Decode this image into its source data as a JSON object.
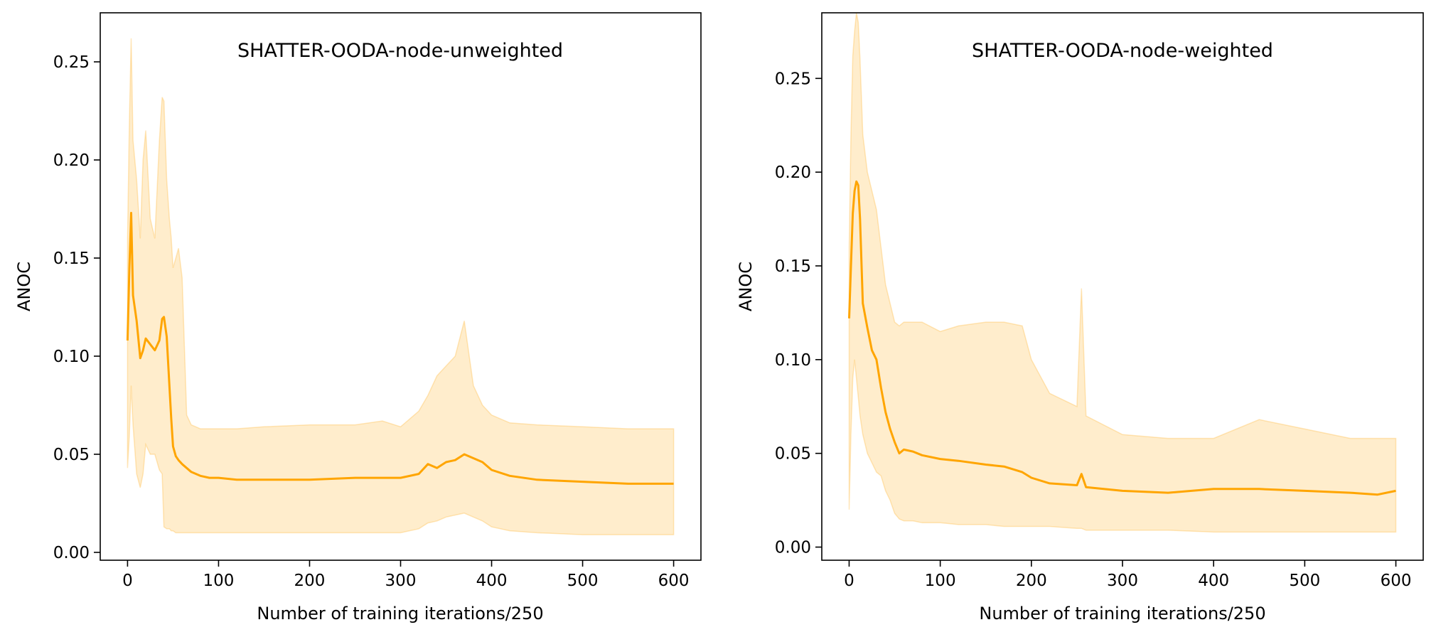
{
  "colors": {
    "line": "#ffa500",
    "band": "#ffa500",
    "axes": "#000000",
    "background": "#ffffff"
  },
  "chart_data": [
    {
      "type": "line",
      "title": "SHATTER-OODA-node-unweighted",
      "xlabel": "Number of training iterations/250",
      "ylabel": "ANOC",
      "xlim": [
        -30,
        630
      ],
      "ylim": [
        -0.004,
        0.275
      ],
      "xticks": [
        0,
        100,
        200,
        300,
        400,
        500,
        600
      ],
      "xtick_labels": [
        "0",
        "100",
        "200",
        "300",
        "400",
        "500",
        "600"
      ],
      "yticks": [
        0.0,
        0.05,
        0.1,
        0.15,
        0.2,
        0.25
      ],
      "ytick_labels": [
        "0.00",
        "0.05",
        "0.10",
        "0.15",
        "0.20",
        "0.25"
      ],
      "grid": false,
      "series": [
        {
          "kind": "mean_with_band",
          "x": [
            0,
            2,
            4,
            6,
            10,
            14,
            17,
            20,
            25,
            30,
            35,
            38,
            40,
            43,
            46,
            48,
            50,
            53,
            56,
            60,
            65,
            70,
            80,
            90,
            100,
            120,
            150,
            200,
            250,
            280,
            300,
            320,
            330,
            340,
            350,
            360,
            370,
            380,
            390,
            400,
            420,
            450,
            500,
            550,
            600
          ],
          "mean": [
            0.108,
            0.145,
            0.173,
            0.131,
            0.118,
            0.099,
            0.103,
            0.109,
            0.106,
            0.103,
            0.108,
            0.119,
            0.12,
            0.11,
            0.085,
            0.068,
            0.054,
            0.049,
            0.047,
            0.045,
            0.043,
            0.041,
            0.039,
            0.038,
            0.038,
            0.037,
            0.037,
            0.037,
            0.038,
            0.038,
            0.038,
            0.04,
            0.045,
            0.043,
            0.046,
            0.047,
            0.05,
            0.048,
            0.046,
            0.042,
            0.039,
            0.037,
            0.036,
            0.035,
            0.035
          ],
          "upper": [
            0.16,
            0.22,
            0.262,
            0.21,
            0.19,
            0.16,
            0.2,
            0.215,
            0.17,
            0.16,
            0.21,
            0.232,
            0.23,
            0.19,
            0.17,
            0.16,
            0.145,
            0.15,
            0.155,
            0.14,
            0.07,
            0.065,
            0.063,
            0.063,
            0.063,
            0.063,
            0.064,
            0.065,
            0.065,
            0.067,
            0.064,
            0.072,
            0.08,
            0.09,
            0.095,
            0.1,
            0.118,
            0.085,
            0.075,
            0.07,
            0.066,
            0.065,
            0.064,
            0.063,
            0.063
          ],
          "lower": [
            0.043,
            0.06,
            0.085,
            0.065,
            0.04,
            0.033,
            0.04,
            0.055,
            0.05,
            0.05,
            0.042,
            0.04,
            0.013,
            0.012,
            0.012,
            0.011,
            0.011,
            0.01,
            0.01,
            0.01,
            0.01,
            0.01,
            0.01,
            0.01,
            0.01,
            0.01,
            0.01,
            0.01,
            0.01,
            0.01,
            0.01,
            0.012,
            0.015,
            0.016,
            0.018,
            0.019,
            0.02,
            0.018,
            0.016,
            0.013,
            0.011,
            0.01,
            0.009,
            0.009,
            0.009
          ]
        }
      ]
    },
    {
      "type": "line",
      "title": "SHATTER-OODA-node-weighted",
      "xlabel": "Number of training iterations/250",
      "ylabel": "ANOC",
      "xlim": [
        -30,
        630
      ],
      "ylim": [
        -0.007,
        0.285
      ],
      "xticks": [
        0,
        100,
        200,
        300,
        400,
        500,
        600
      ],
      "xtick_labels": [
        "0",
        "100",
        "200",
        "300",
        "400",
        "500",
        "600"
      ],
      "yticks": [
        0.0,
        0.05,
        0.1,
        0.15,
        0.2,
        0.25
      ],
      "ytick_labels": [
        "0.00",
        "0.05",
        "0.10",
        "0.15",
        "0.20",
        "0.25"
      ],
      "grid": false,
      "series": [
        {
          "kind": "mean_with_band",
          "x": [
            0,
            2,
            4,
            6,
            8,
            10,
            12,
            15,
            20,
            25,
            30,
            35,
            40,
            45,
            50,
            55,
            60,
            70,
            80,
            100,
            120,
            150,
            170,
            190,
            200,
            220,
            250,
            255,
            260,
            300,
            350,
            400,
            450,
            500,
            550,
            580,
            600
          ],
          "mean": [
            0.122,
            0.15,
            0.178,
            0.19,
            0.195,
            0.193,
            0.175,
            0.13,
            0.117,
            0.105,
            0.1,
            0.085,
            0.072,
            0.063,
            0.056,
            0.05,
            0.052,
            0.051,
            0.049,
            0.047,
            0.046,
            0.044,
            0.043,
            0.04,
            0.037,
            0.034,
            0.033,
            0.039,
            0.032,
            0.03,
            0.029,
            0.031,
            0.031,
            0.03,
            0.029,
            0.028,
            0.03
          ],
          "upper": [
            0.16,
            0.22,
            0.262,
            0.275,
            0.285,
            0.28,
            0.26,
            0.22,
            0.2,
            0.19,
            0.18,
            0.16,
            0.14,
            0.13,
            0.12,
            0.118,
            0.12,
            0.12,
            0.12,
            0.115,
            0.118,
            0.12,
            0.12,
            0.118,
            0.1,
            0.082,
            0.075,
            0.138,
            0.07,
            0.06,
            0.058,
            0.058,
            0.068,
            0.063,
            0.058,
            0.058,
            0.058
          ],
          "lower": [
            0.02,
            0.06,
            0.09,
            0.1,
            0.09,
            0.08,
            0.07,
            0.06,
            0.05,
            0.045,
            0.04,
            0.038,
            0.03,
            0.025,
            0.018,
            0.015,
            0.014,
            0.014,
            0.013,
            0.013,
            0.012,
            0.012,
            0.011,
            0.011,
            0.011,
            0.011,
            0.01,
            0.01,
            0.009,
            0.009,
            0.009,
            0.008,
            0.008,
            0.008,
            0.008,
            0.008,
            0.008
          ]
        }
      ]
    }
  ]
}
